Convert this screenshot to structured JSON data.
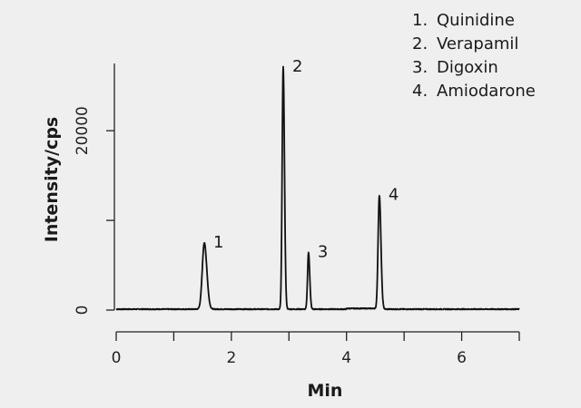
{
  "chart_data": {
    "type": "line",
    "xlabel": "Min",
    "ylabel": "Intensity/cps",
    "xlim": [
      0,
      7
    ],
    "ylim": [
      0,
      27500
    ],
    "x_ticks": [
      0,
      1,
      2,
      3,
      4,
      5,
      6,
      7
    ],
    "x_tick_labels": [
      "0",
      "",
      "2",
      "",
      "4",
      "",
      "6",
      ""
    ],
    "y_ticks": [
      0,
      10000,
      20000
    ],
    "y_tick_labels": [
      "0",
      "",
      "20000"
    ],
    "grid": false,
    "legend_position": "top-right",
    "legend": [
      "Quinidine",
      "Verapamil",
      "Digoxin",
      "Amiodarone"
    ],
    "series": [
      {
        "peaks": [
          {
            "label": "1",
            "compound": "Quinidine",
            "retention_time": 1.53,
            "intensity": 7400
          },
          {
            "label": "2",
            "compound": "Verapamil",
            "retention_time": 2.9,
            "intensity": 27000
          },
          {
            "label": "3",
            "compound": "Digoxin",
            "retention_time": 3.34,
            "intensity": 6300
          },
          {
            "label": "4",
            "compound": "Amiodarone",
            "retention_time": 4.57,
            "intensity": 12700
          }
        ],
        "baseline": 100
      }
    ],
    "color": "#111111"
  }
}
